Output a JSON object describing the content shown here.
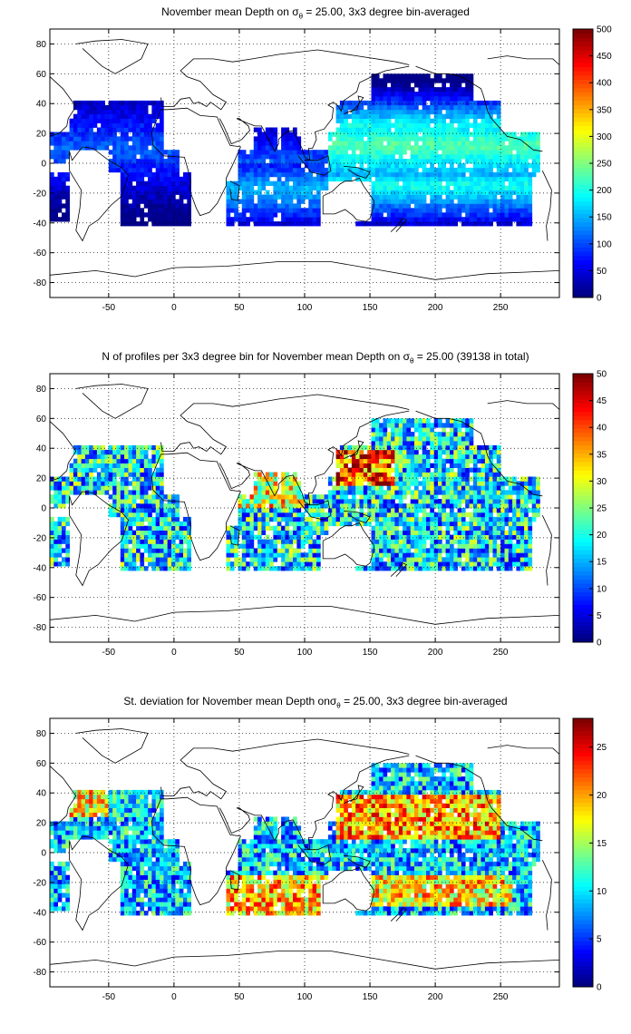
{
  "panels": [
    {
      "title_pre": "November mean Depth on ",
      "title_sym": "σ",
      "title_sub": "θ",
      "title_post": " = 25.00, 3x3 degree bin-averaged",
      "colorbar": {
        "min": 0,
        "max": 500,
        "ticks": [
          "0",
          "50",
          "100",
          "150",
          "200",
          "250",
          "300",
          "350",
          "400",
          "450",
          "500"
        ]
      },
      "field": "depth"
    },
    {
      "title_pre": "N of profiles per 3x3 degree bin for November mean Depth on ",
      "title_sym": "σ",
      "title_sub": "θ",
      "title_post": " = 25.00 (39138 in total)",
      "colorbar": {
        "min": 0,
        "max": 50,
        "ticks": [
          "0",
          "5",
          "10",
          "15",
          "20",
          "25",
          "30",
          "35",
          "40",
          "45",
          "50"
        ]
      },
      "field": "count"
    },
    {
      "title_pre": "St. deviation for November mean Depth on",
      "title_sym": "σ",
      "title_sub": "θ",
      "title_post": " = 25.00, 3x3 degree bin-averaged",
      "colorbar": {
        "min": 0,
        "max": 28,
        "ticks": [
          "0",
          "5",
          "10",
          "15",
          "20",
          "25"
        ]
      },
      "field": "std"
    }
  ],
  "map_axes": {
    "x_ticks": [
      "-50",
      "0",
      "50",
      "100",
      "150",
      "200",
      "250"
    ],
    "y_ticks": [
      "80",
      "60",
      "40",
      "20",
      "0",
      "-20",
      "-40",
      "-60",
      "-80"
    ],
    "lon_range": [
      -95,
      295
    ],
    "lat_range": [
      -90,
      90
    ]
  },
  "colormap": "jet"
}
